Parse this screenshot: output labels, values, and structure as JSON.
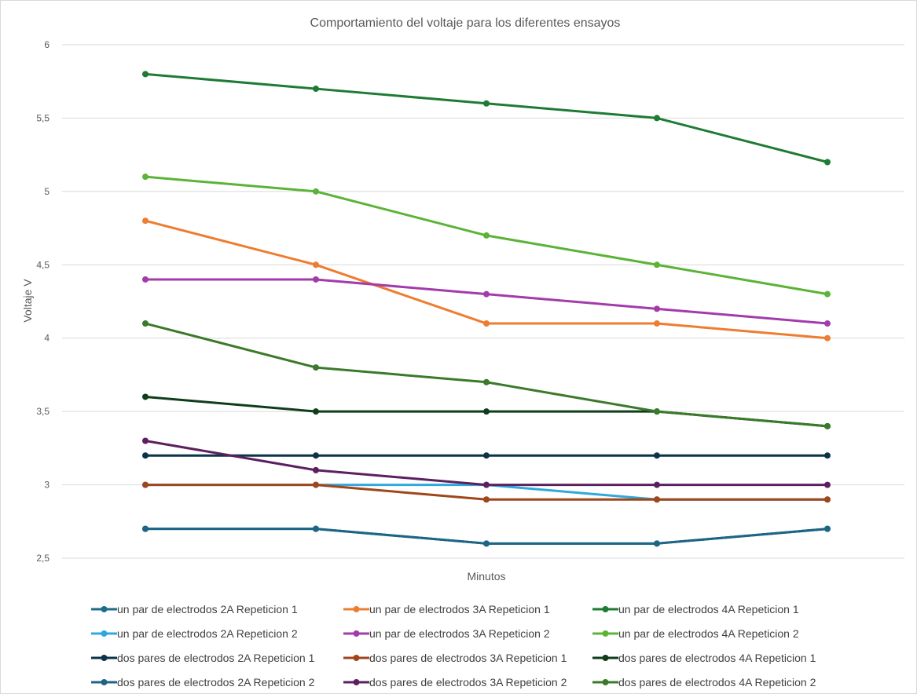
{
  "chart_data": {
    "type": "line",
    "title": "Comportamiento del voltaje para los diferentes ensayos",
    "xlabel": "Minutos",
    "ylabel": "Voltaje V",
    "ylim": [
      2.5,
      6
    ],
    "yticks": [
      "2,5",
      "3",
      "3,5",
      "4",
      "4,5",
      "5",
      "5,5",
      "6"
    ],
    "x": [
      1,
      2,
      3,
      4,
      5
    ],
    "grid": true,
    "legend_position": "bottom",
    "series": [
      {
        "name": "un par de electrodos 2A Repeticion 1",
        "color": "#1f6b8a",
        "values": [
          2.7,
          2.7,
          2.6,
          2.6,
          2.7
        ]
      },
      {
        "name": "un par de electrodos 3A Repeticion 1",
        "color": "#ed7d31",
        "values": [
          4.8,
          4.5,
          4.1,
          4.1,
          4.0
        ]
      },
      {
        "name": "un par de electrodos 4A Repeticion 1",
        "color": "#1e7b34",
        "values": [
          5.8,
          5.7,
          5.6,
          5.5,
          5.2
        ]
      },
      {
        "name": "un par de electrodos 2A Repeticion 2",
        "color": "#2fa8dc",
        "values": [
          3.0,
          3.0,
          3.0,
          2.9,
          2.9
        ]
      },
      {
        "name": "un par de electrodos 3A Repeticion 2",
        "color": "#a33bab",
        "values": [
          4.4,
          4.4,
          4.3,
          4.2,
          4.1
        ]
      },
      {
        "name": "un par de electrodos 4A Repeticion 2",
        "color": "#5bb337",
        "values": [
          5.1,
          5.0,
          4.7,
          4.5,
          4.3
        ]
      },
      {
        "name": "dos pares de electrodos 2A Repeticion 1",
        "color": "#0d3349",
        "values": [
          3.2,
          3.2,
          3.2,
          3.2,
          3.2
        ]
      },
      {
        "name": "dos pares de electrodos 3A Repeticion 1",
        "color": "#a0461b",
        "values": [
          3.0,
          3.0,
          2.9,
          2.9,
          2.9
        ]
      },
      {
        "name": "dos pares de electrodos 4A Repeticion 1",
        "color": "#0f3d1a",
        "values": [
          3.6,
          3.5,
          3.5,
          3.5,
          3.4
        ]
      },
      {
        "name": "dos pares de electrodos 2A Repeticion 2",
        "color": "#1d6585",
        "values": [
          2.7,
          2.7,
          2.6,
          2.6,
          2.7
        ]
      },
      {
        "name": "dos pares de electrodos 3A Repeticion 2",
        "color": "#5c1f5f",
        "values": [
          3.3,
          3.1,
          3.0,
          3.0,
          3.0
        ]
      },
      {
        "name": "dos pares de electrodos 4A Repeticion 2",
        "color": "#3a7a2a",
        "values": [
          4.1,
          3.8,
          3.7,
          3.5,
          3.4
        ]
      }
    ]
  }
}
